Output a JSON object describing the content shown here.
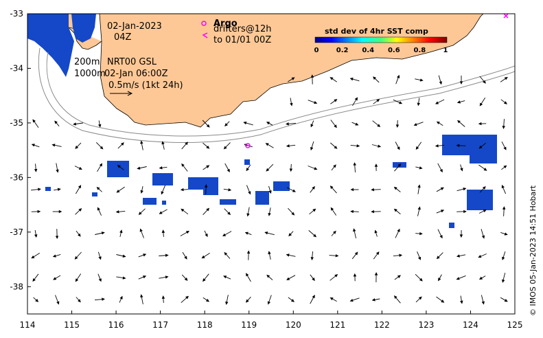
{
  "map": {
    "x_ticks": [
      "114",
      "115",
      "116",
      "117",
      "118",
      "119",
      "120",
      "121",
      "122",
      "123",
      "124",
      "125"
    ],
    "y_ticks": [
      "-33",
      "-34",
      "-35",
      "-36",
      "-37",
      "-38"
    ],
    "lon_range": [
      114,
      125
    ],
    "lat_range": [
      -38.5,
      -33
    ]
  },
  "colors": {
    "land": "#fdc896",
    "sst_patch": "#1448c8",
    "drifter_marker": "#ff00ff",
    "contour": "#8a8a8a"
  },
  "annotations": {
    "date_line1": "02-Jan-2023",
    "date_line2": "04Z",
    "argo_label": "Argo",
    "drifters_line1": "drifters@12h",
    "drifters_line2": "to 01/01 00Z",
    "depth_200": "200m",
    "depth_1000": "1000m",
    "product_line": "NRT00 GSL",
    "product_time": "02-Jan 06:00Z",
    "scale_label": "0.5m/s (1kt 24h)"
  },
  "colorbar": {
    "title": "std dev of 4hr SST comp",
    "ticks": [
      "0",
      "0.2",
      "0.4",
      "0.6",
      "0.8",
      "1"
    ]
  },
  "credit": "© IMOS 05-Jan-2023 14:51 Hobart"
}
